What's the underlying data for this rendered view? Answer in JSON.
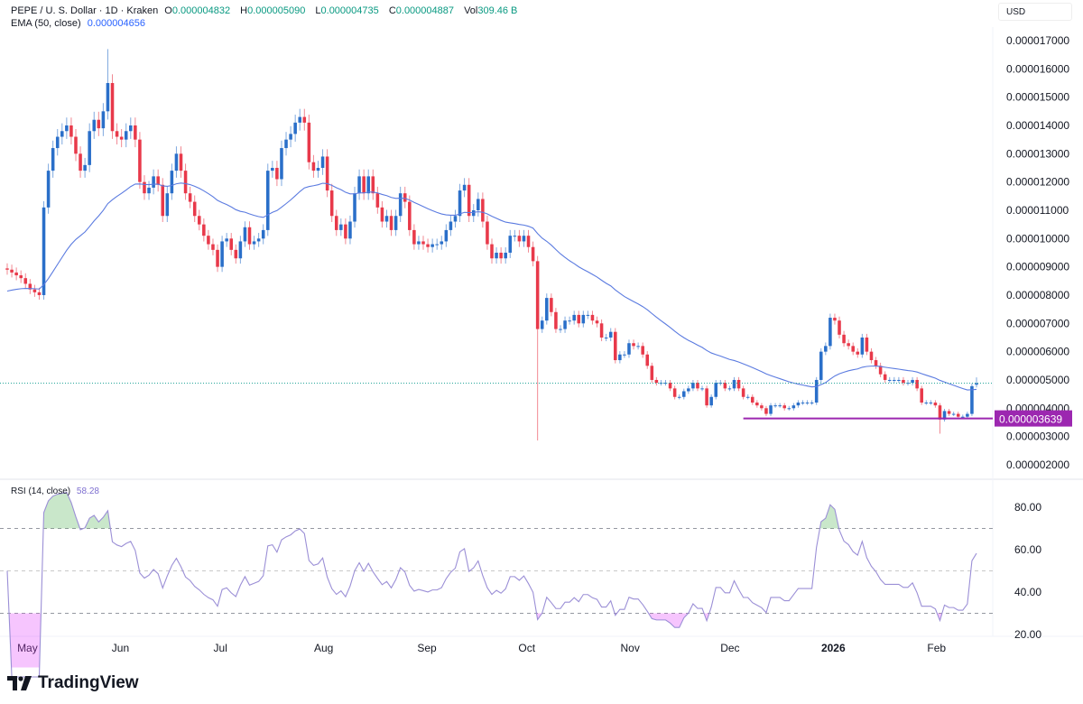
{
  "header": {
    "symbol_line": "PEPE / U. S. Dollar · 1D · Kraken",
    "o_label": "O",
    "o": "0.000004832",
    "h_label": "H",
    "h": "0.000005090",
    "l_label": "L",
    "l": "0.000004735",
    "c_label": "C",
    "c": "0.000004887",
    "vol_label": "Vol",
    "vol": "309.46 B",
    "ema_label": "EMA (50, close)",
    "ema_value": "0.000004656",
    "currency": "USD"
  },
  "rsi": {
    "label": "RSI (14, close)",
    "value": "58.28"
  },
  "brand": {
    "name": "TradingView"
  },
  "colors": {
    "up": "#2a6fc9",
    "down": "#e8394a",
    "ema": "#5b7be0",
    "rsi": "#9b8fd6",
    "support": "#9c27b0",
    "last_price": "#26a69a"
  },
  "chart_data": {
    "type": "candlestick",
    "unit": "USD x 1e-6",
    "date_range": [
      "2025-04-28",
      "2026-02-13"
    ],
    "closes": [
      8.9,
      8.8,
      8.7,
      8.6,
      8.4,
      8.2,
      8.1,
      8.0,
      11.1,
      12.4,
      13.2,
      13.6,
      13.8,
      14.0,
      13.6,
      13.0,
      12.4,
      12.6,
      13.8,
      14.2,
      13.9,
      14.5,
      15.5,
      13.8,
      13.6,
      13.5,
      13.8,
      14.0,
      13.5,
      12.0,
      11.6,
      11.8,
      12.2,
      11.9,
      10.8,
      11.6,
      12.4,
      13.0,
      12.4,
      11.6,
      11.3,
      10.8,
      10.5,
      10.1,
      9.8,
      9.6,
      9.0,
      9.9,
      10.0,
      9.6,
      9.3,
      9.9,
      10.4,
      9.8,
      9.9,
      10.0,
      10.3,
      12.4,
      12.5,
      12.1,
      13.2,
      13.5,
      13.7,
      14.1,
      14.3,
      14.1,
      12.7,
      12.4,
      12.5,
      12.9,
      11.7,
      10.8,
      10.3,
      10.5,
      10.0,
      10.6,
      11.6,
      12.2,
      11.6,
      12.2,
      11.6,
      11.1,
      10.6,
      10.8,
      10.3,
      10.8,
      11.6,
      11.3,
      10.3,
      9.8,
      9.9,
      9.8,
      9.7,
      9.8,
      9.8,
      9.9,
      10.3,
      10.6,
      10.8,
      11.7,
      11.9,
      10.8,
      11.0,
      11.4,
      10.6,
      9.8,
      9.3,
      9.5,
      9.3,
      9.5,
      10.1,
      10.1,
      9.9,
      10.1,
      9.7,
      9.2,
      6.8,
      7.1,
      7.9,
      7.4,
      6.8,
      6.8,
      7.1,
      7.1,
      7.3,
      7.0,
      7.3,
      7.3,
      7.1,
      7.0,
      6.5,
      6.5,
      6.7,
      5.7,
      5.9,
      5.9,
      6.3,
      6.2,
      6.2,
      5.9,
      5.5,
      5.0,
      4.9,
      4.9,
      4.9,
      4.7,
      4.4,
      4.4,
      4.6,
      4.7,
      4.9,
      4.7,
      4.7,
      4.1,
      4.4,
      4.9,
      4.9,
      4.7,
      4.7,
      5.0,
      4.7,
      4.4,
      4.4,
      4.2,
      4.1,
      4.0,
      3.8,
      4.1,
      4.1,
      4.1,
      4.0,
      4.0,
      4.1,
      4.2,
      4.2,
      4.2,
      4.2,
      5.0,
      6.0,
      6.2,
      7.2,
      7.1,
      6.6,
      6.3,
      6.2,
      6.0,
      5.9,
      6.5,
      6.0,
      5.7,
      5.5,
      5.2,
      5.0,
      5.0,
      5.0,
      5.0,
      4.9,
      4.9,
      5.0,
      4.7,
      4.2,
      4.2,
      4.2,
      4.1,
      3.6,
      3.9,
      3.8,
      3.8,
      3.7,
      3.7,
      3.8,
      4.78,
      4.887
    ],
    "last_candle": {
      "open": 4.832,
      "high": 5.09,
      "low": 4.735,
      "close": 4.887
    },
    "notable_wicks": [
      {
        "index": 22,
        "high": 16.7
      },
      {
        "index": 116,
        "low": 2.86
      },
      {
        "index": 204,
        "low": 3.1
      }
    ],
    "ema_period": 50,
    "support_level": {
      "value": 3.639,
      "label": "0.000003639",
      "start_index": 161
    },
    "y_ticks": [
      "0.000017000",
      "0.000016000",
      "0.000015000",
      "0.000014000",
      "0.000013000",
      "0.000012000",
      "0.000011000",
      "0.000010000",
      "0.000009000",
      "0.000008000",
      "0.000007000",
      "0.000006000",
      "0.000005000",
      "0.000004000",
      "0.000003000",
      "0.000002000"
    ],
    "ylim": [
      2,
      17
    ],
    "rsi_ticks": [
      "80.00",
      "60.00",
      "40.00",
      "20.00"
    ],
    "rsi_levels": [
      70,
      50,
      30
    ],
    "x_ticks": [
      {
        "label": "May",
        "date": "2025-05-01"
      },
      {
        "label": "Jun",
        "date": "2025-06-01"
      },
      {
        "label": "Jul",
        "date": "2025-07-01"
      },
      {
        "label": "Aug",
        "date": "2025-08-01"
      },
      {
        "label": "Sep",
        "date": "2025-09-01"
      },
      {
        "label": "Oct",
        "date": "2025-10-01"
      },
      {
        "label": "Nov",
        "date": "2025-11-01"
      },
      {
        "label": "Dec",
        "date": "2025-12-01"
      },
      {
        "label": "2026",
        "date": "2026-01-01",
        "bold": true
      },
      {
        "label": "Feb",
        "date": "2026-02-01"
      }
    ],
    "grid": false
  }
}
